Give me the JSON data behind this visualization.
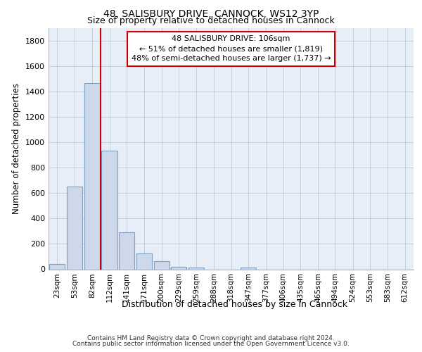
{
  "title1": "48, SALISBURY DRIVE, CANNOCK, WS12 3YP",
  "title2": "Size of property relative to detached houses in Cannock",
  "xlabel": "Distribution of detached houses by size in Cannock",
  "ylabel": "Number of detached properties",
  "bar_color": "#cdd9ea",
  "bar_edge_color": "#7aa0c4",
  "categories": [
    "23sqm",
    "53sqm",
    "82sqm",
    "112sqm",
    "141sqm",
    "171sqm",
    "200sqm",
    "229sqm",
    "259sqm",
    "288sqm",
    "318sqm",
    "347sqm",
    "377sqm",
    "406sqm",
    "435sqm",
    "465sqm",
    "494sqm",
    "524sqm",
    "553sqm",
    "583sqm",
    "612sqm"
  ],
  "values": [
    40,
    650,
    1470,
    935,
    290,
    125,
    63,
    22,
    15,
    0,
    0,
    15,
    0,
    0,
    0,
    0,
    0,
    0,
    0,
    0,
    0
  ],
  "ylim": [
    0,
    1900
  ],
  "yticks": [
    0,
    200,
    400,
    600,
    800,
    1000,
    1200,
    1400,
    1600,
    1800
  ],
  "vline_pos": 2.5,
  "vline_color": "#cc0000",
  "ann_line1": "48 SALISBURY DRIVE: 106sqm",
  "ann_line2": "← 51% of detached houses are smaller (1,819)",
  "ann_line3": "48% of semi-detached houses are larger (1,737) →",
  "ann_box_facecolor": "#ffffff",
  "ann_box_edgecolor": "#cc0000",
  "background_color": "#e8eef8",
  "grid_color": "#c0cad8",
  "footer1": "Contains HM Land Registry data © Crown copyright and database right 2024.",
  "footer2": "Contains public sector information licensed under the Open Government Licence v3.0."
}
